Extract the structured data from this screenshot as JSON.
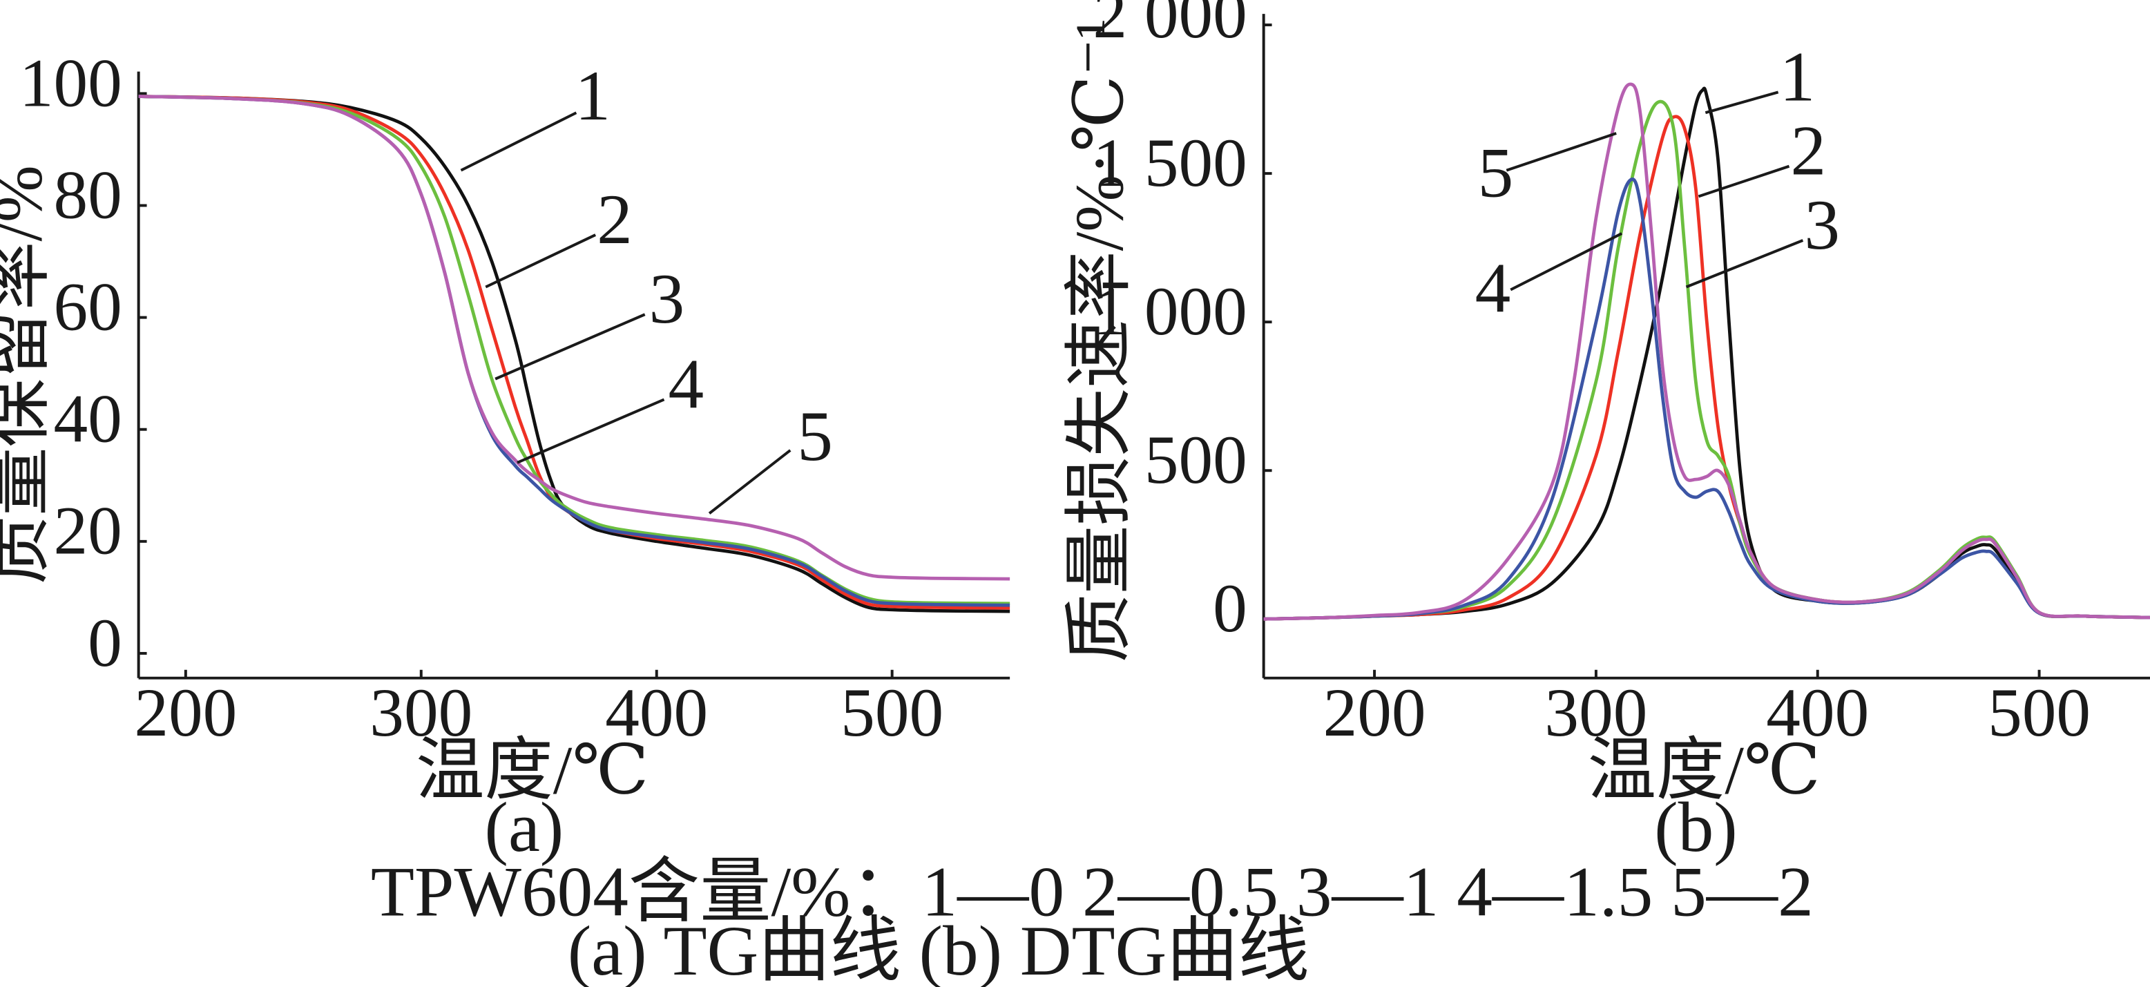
{
  "colors": {
    "axis": "#1a1a1a",
    "series_1": "#111111",
    "series_2": "#ee3124",
    "series_3": "#6cbf3f",
    "series_4": "#3c55a5",
    "series_5": "#b660b0"
  },
  "captions": {
    "legend_line": "TPW604含量/%：1—0    2—0.5    3—1    4—1.5    5—2",
    "sub_line": "(a) TG曲线    (b) DTG曲线"
  },
  "chart_data": [
    {
      "type": "line",
      "panel_label": "(a)",
      "xlabel": "温度/℃",
      "ylabel": "质量保留率/%",
      "xlim": [
        180,
        550
      ],
      "ylim": [
        0,
        100
      ],
      "xticks": [
        200,
        300,
        400,
        500
      ],
      "yticks": [
        0,
        20,
        40,
        60,
        80,
        100
      ],
      "ytick_labels": [
        "0",
        "20",
        "40",
        "60",
        "80",
        "100"
      ],
      "grid": false,
      "series": [
        {
          "name": "1",
          "color": "#111111",
          "x": [
            180,
            220,
            250,
            270,
            290,
            300,
            310,
            320,
            330,
            340,
            345,
            350,
            355,
            360,
            370,
            380,
            400,
            420,
            440,
            460,
            470,
            480,
            490,
            500,
            520,
            550
          ],
          "y": [
            99.5,
            99.2,
            98.6,
            97.5,
            95.0,
            92.0,
            87.0,
            80.0,
            70.0,
            56.0,
            47.0,
            38.0,
            31.0,
            26.5,
            23.0,
            21.5,
            20.0,
            18.8,
            17.5,
            15.0,
            12.5,
            10.0,
            8.2,
            7.8,
            7.6,
            7.5
          ]
        },
        {
          "name": "2",
          "color": "#ee3124",
          "x": [
            180,
            220,
            250,
            270,
            290,
            300,
            310,
            320,
            330,
            340,
            345,
            350,
            355,
            360,
            370,
            380,
            400,
            420,
            440,
            460,
            470,
            480,
            490,
            500,
            520,
            550
          ],
          "y": [
            99.5,
            99.2,
            98.5,
            97.0,
            93.0,
            89.0,
            82.0,
            72.0,
            58.0,
            44.0,
            38.0,
            32.0,
            28.0,
            26.0,
            23.5,
            22.0,
            20.5,
            19.5,
            18.2,
            15.8,
            13.2,
            10.6,
            8.8,
            8.4,
            8.2,
            8.1
          ]
        },
        {
          "name": "3",
          "color": "#6cbf3f",
          "x": [
            180,
            220,
            250,
            270,
            290,
            300,
            310,
            320,
            330,
            340,
            345,
            350,
            355,
            360,
            370,
            380,
            400,
            420,
            440,
            460,
            470,
            480,
            490,
            500,
            520,
            550
          ],
          "y": [
            99.5,
            99.1,
            98.3,
            96.5,
            92.0,
            87.0,
            78.0,
            64.0,
            49.0,
            38.5,
            34.5,
            31.0,
            28.5,
            26.5,
            24.0,
            22.5,
            21.2,
            20.2,
            19.0,
            16.5,
            14.0,
            11.5,
            9.8,
            9.2,
            9.0,
            8.9
          ]
        },
        {
          "name": "4",
          "color": "#3c55a5",
          "x": [
            180,
            220,
            250,
            270,
            290,
            300,
            310,
            320,
            330,
            340,
            345,
            350,
            355,
            360,
            370,
            380,
            400,
            420,
            440,
            460,
            470,
            480,
            490,
            500,
            520,
            550
          ],
          "y": [
            99.5,
            99.1,
            98.2,
            96.0,
            90.0,
            82.0,
            68.0,
            50.0,
            39.0,
            33.5,
            31.5,
            29.5,
            27.5,
            26.0,
            23.5,
            22.0,
            20.8,
            19.8,
            18.6,
            16.2,
            13.8,
            11.2,
            9.4,
            8.9,
            8.7,
            8.6
          ]
        },
        {
          "name": "5",
          "color": "#b660b0",
          "x": [
            180,
            220,
            250,
            270,
            290,
            300,
            310,
            320,
            330,
            340,
            345,
            350,
            355,
            360,
            370,
            380,
            400,
            420,
            440,
            460,
            470,
            480,
            490,
            500,
            520,
            550
          ],
          "y": [
            99.5,
            99.1,
            98.2,
            96.0,
            90.0,
            82.0,
            68.0,
            50.0,
            39.5,
            34.5,
            32.5,
            31.0,
            29.5,
            28.5,
            27.0,
            26.2,
            25.0,
            24.0,
            22.8,
            20.5,
            18.0,
            15.5,
            14.0,
            13.6,
            13.4,
            13.3
          ]
        }
      ]
    },
    {
      "type": "line",
      "panel_label": "(b)",
      "xlabel": "温度/℃",
      "ylabel": "质量损失速率/%·℃⁻¹",
      "xlim": [
        150,
        550
      ],
      "ylim": [
        -200,
        2000
      ],
      "xticks": [
        200,
        300,
        400,
        500
      ],
      "yticks": [
        0,
        500,
        1000,
        1500,
        2000
      ],
      "ytick_labels": [
        "0",
        "500",
        "1 000",
        "1 500",
        "2 000"
      ],
      "grid": false,
      "series": [
        {
          "name": "1",
          "color": "#111111",
          "x": [
            150,
            180,
            200,
            220,
            240,
            260,
            280,
            300,
            310,
            320,
            330,
            340,
            345,
            348,
            350,
            355,
            360,
            365,
            370,
            380,
            400,
            420,
            440,
            455,
            465,
            472,
            476,
            480,
            490,
            500,
            520,
            550
          ],
          "y": [
            0,
            5,
            10,
            15,
            25,
            50,
            120,
            300,
            500,
            800,
            1150,
            1550,
            1730,
            1780,
            1760,
            1550,
            1000,
            500,
            250,
            100,
            60,
            55,
            80,
            150,
            220,
            245,
            250,
            235,
            130,
            20,
            10,
            5
          ]
        },
        {
          "name": "2",
          "color": "#ee3124",
          "x": [
            150,
            180,
            200,
            220,
            240,
            260,
            280,
            300,
            310,
            320,
            330,
            335,
            340,
            345,
            350,
            355,
            360,
            365,
            370,
            380,
            400,
            420,
            440,
            455,
            465,
            472,
            476,
            480,
            490,
            500,
            520,
            550
          ],
          "y": [
            0,
            5,
            10,
            15,
            30,
            70,
            200,
            550,
            900,
            1300,
            1620,
            1690,
            1650,
            1450,
            1000,
            650,
            450,
            320,
            220,
            110,
            65,
            58,
            85,
            160,
            230,
            262,
            270,
            255,
            140,
            22,
            10,
            5
          ]
        },
        {
          "name": "3",
          "color": "#6cbf3f",
          "x": [
            150,
            180,
            200,
            220,
            240,
            260,
            280,
            300,
            310,
            320,
            328,
            335,
            340,
            345,
            350,
            355,
            360,
            365,
            370,
            380,
            400,
            420,
            440,
            455,
            465,
            472,
            476,
            480,
            490,
            500,
            520,
            550
          ],
          "y": [
            0,
            5,
            10,
            18,
            40,
            110,
            320,
            800,
            1250,
            1600,
            1740,
            1650,
            1250,
            800,
            600,
            550,
            480,
            320,
            210,
            110,
            65,
            58,
            88,
            165,
            238,
            270,
            275,
            262,
            145,
            22,
            10,
            5
          ]
        },
        {
          "name": "4",
          "color": "#3c55a5",
          "x": [
            150,
            180,
            200,
            220,
            240,
            260,
            280,
            300,
            310,
            316,
            320,
            325,
            330,
            335,
            340,
            345,
            350,
            355,
            360,
            365,
            370,
            380,
            400,
            420,
            440,
            455,
            465,
            472,
            476,
            480,
            490,
            500,
            520,
            550
          ],
          "y": [
            0,
            5,
            10,
            18,
            45,
            130,
            400,
            1000,
            1370,
            1480,
            1400,
            1100,
            750,
            500,
            430,
            410,
            430,
            430,
            360,
            260,
            180,
            100,
            60,
            55,
            80,
            150,
            205,
            225,
            228,
            215,
            120,
            20,
            10,
            5
          ]
        },
        {
          "name": "5",
          "color": "#b660b0",
          "x": [
            150,
            180,
            200,
            220,
            240,
            260,
            280,
            290,
            300,
            310,
            316,
            320,
            325,
            330,
            335,
            340,
            345,
            350,
            355,
            360,
            365,
            370,
            380,
            400,
            420,
            440,
            455,
            465,
            472,
            476,
            480,
            490,
            500,
            520,
            550
          ],
          "y": [
            0,
            5,
            12,
            22,
            60,
            200,
            450,
            800,
            1350,
            1720,
            1800,
            1700,
            1300,
            850,
            600,
            480,
            470,
            480,
            500,
            450,
            330,
            220,
            110,
            65,
            58,
            85,
            160,
            230,
            262,
            268,
            255,
            140,
            22,
            10,
            5
          ]
        }
      ]
    }
  ],
  "panels": [
    {
      "annotations": [
        {
          "text": "1",
          "label_at": [
            432,
            78
          ],
          "leader": [
            [
              420,
              82
            ],
            [
              336,
              124
            ]
          ]
        },
        {
          "text": "2",
          "label_at": [
            448,
            168
          ],
          "leader": [
            [
              434,
              171
            ],
            [
              354,
              209
            ]
          ]
        },
        {
          "text": "3",
          "label_at": [
            486,
            226
          ],
          "leader": [
            [
              470,
              229
            ],
            [
              361,
              276
            ]
          ]
        },
        {
          "text": "4",
          "label_at": [
            500,
            288
          ],
          "leader": [
            [
              484,
              291
            ],
            [
              377,
              337
            ]
          ]
        },
        {
          "text": "5",
          "label_at": [
            594,
            326
          ],
          "leader": [
            [
              576,
              328
            ],
            [
              517,
              374
            ]
          ]
        }
      ]
    },
    {
      "annotations": [
        {
          "text": "1",
          "label_at": [
            1310,
            64
          ],
          "leader": [
            [
              1296,
              67
            ],
            [
              1243,
              82
            ]
          ]
        },
        {
          "text": "2",
          "label_at": [
            1318,
            118
          ],
          "leader": [
            [
              1304,
              121
            ],
            [
              1238,
              143
            ]
          ]
        },
        {
          "text": "3",
          "label_at": [
            1328,
            172
          ],
          "leader": [
            [
              1314,
              175
            ],
            [
              1229,
              209
            ]
          ]
        },
        {
          "text": "4",
          "label_at": [
            1088,
            218
          ],
          "leader": [
            [
              1101,
              211
            ],
            [
              1182,
              170
            ]
          ]
        },
        {
          "text": "5",
          "label_at": [
            1090,
            134
          ],
          "leader": [
            [
              1098,
              124
            ],
            [
              1178,
              97
            ]
          ]
        }
      ]
    }
  ]
}
